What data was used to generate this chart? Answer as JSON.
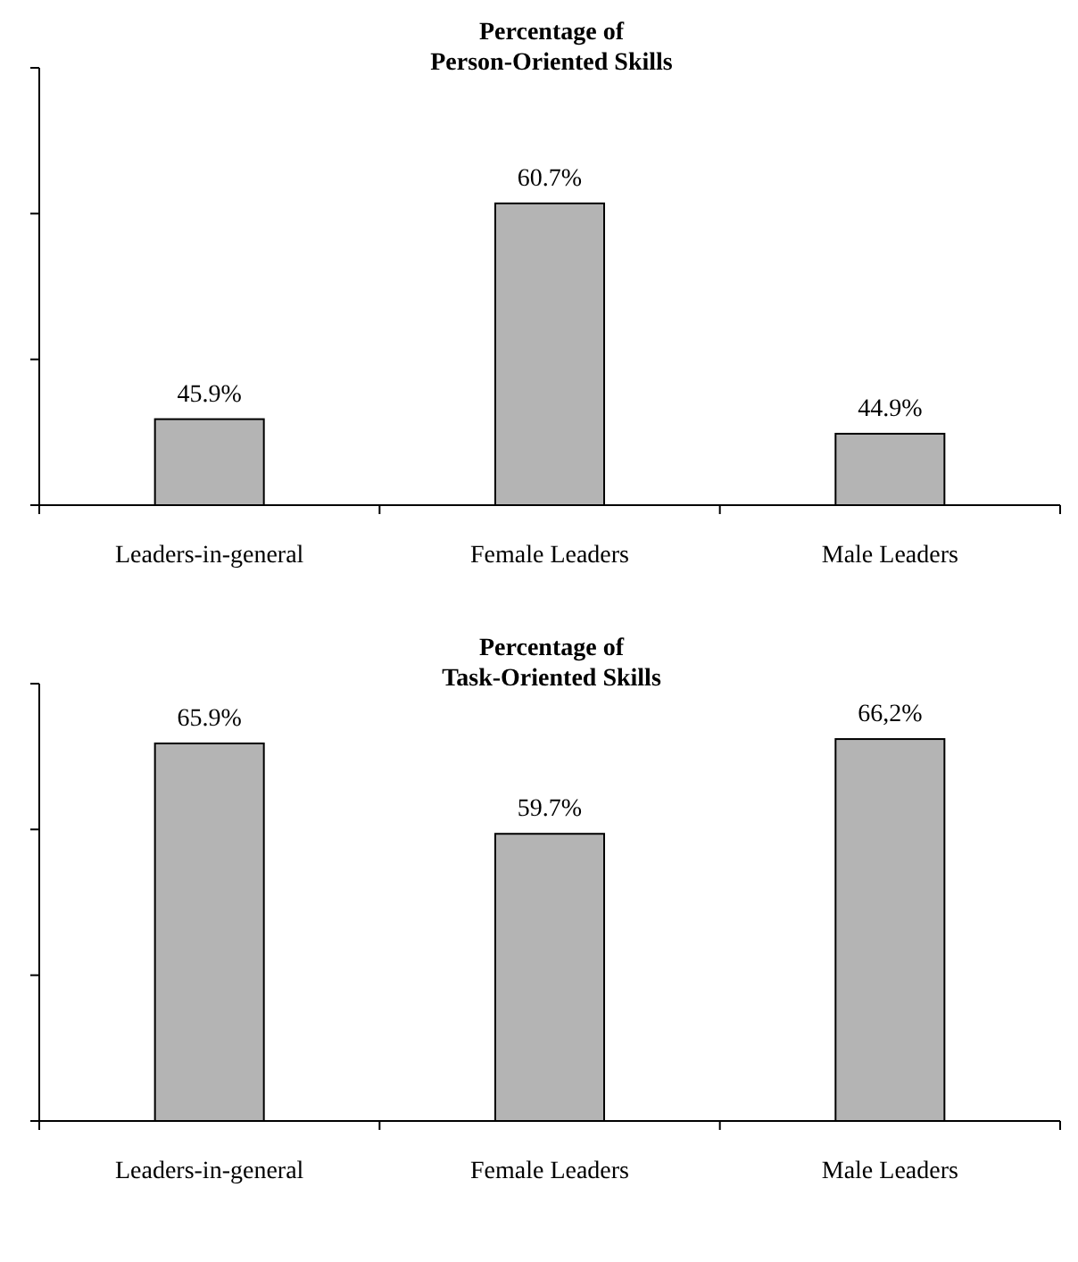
{
  "chart_data": [
    {
      "type": "bar",
      "title": "Percentage of\nPerson-Oriented Skills",
      "categories": [
        "Leaders-in-general",
        "Female Leaders",
        "Male Leaders"
      ],
      "values": [
        45.9,
        60.7,
        44.9
      ],
      "value_labels": [
        "45.9%",
        "60.7%",
        "44.9%"
      ],
      "color": "#b4b4b4",
      "ylim": [
        40,
        70
      ],
      "yticks": [
        {
          "value": 40,
          "label": null
        },
        {
          "value": 50,
          "label": null
        },
        {
          "value": 60,
          "label": null
        },
        {
          "value": 70,
          "label": null
        }
      ],
      "tick_labels": "x"
    },
    {
      "type": "bar",
      "title": "Percentage of\nTask-Oriented Skills",
      "categories": [
        "Leaders-in-general",
        "Female Leaders",
        "Male Leaders"
      ],
      "values": [
        65.9,
        59.7,
        66.2
      ],
      "value_labels": [
        "65.9%",
        "59.7%",
        "66,2%"
      ],
      "color": "#b4b4b4",
      "ylim": [
        40,
        70
      ],
      "yticks": [
        {
          "value": 40,
          "label": null
        },
        {
          "value": 50,
          "label": null
        },
        {
          "value": 60,
          "label": null
        },
        {
          "value": 70,
          "label": null
        }
      ],
      "tick_labels": "x"
    }
  ]
}
